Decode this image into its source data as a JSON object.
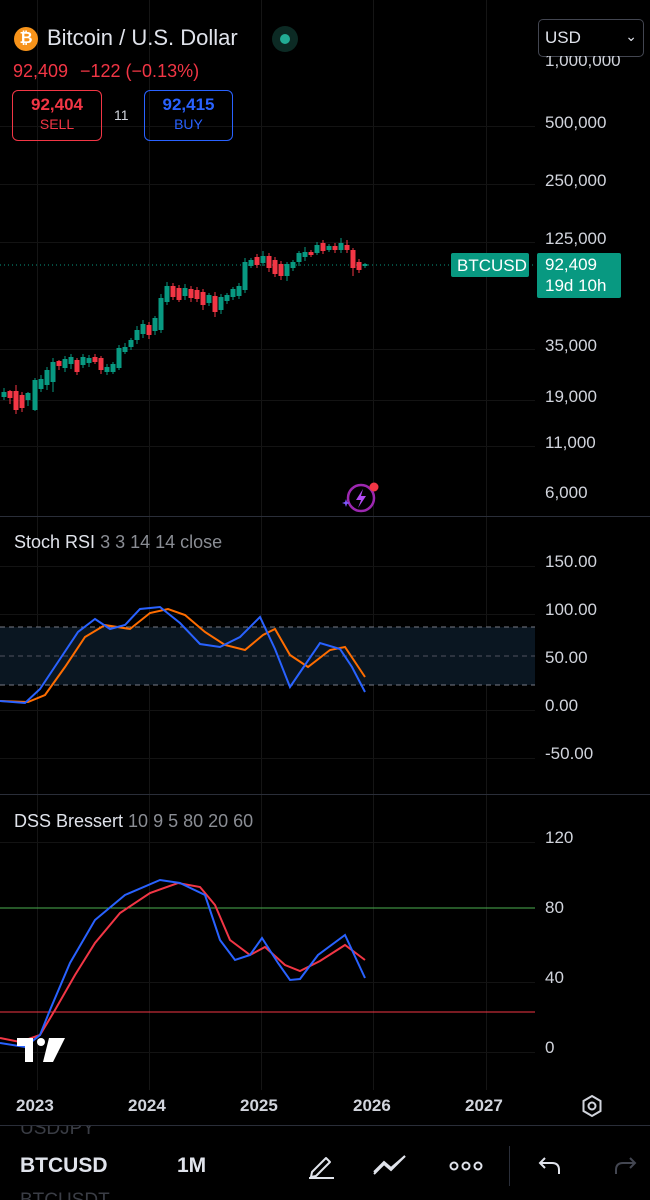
{
  "header": {
    "symbol_title": "Bitcoin / U.S. Dollar",
    "price_line": "92,409",
    "change": "−122 (−0.13%)",
    "currency": "USD"
  },
  "trade": {
    "sell_price": "92,404",
    "sell_label": "SELL",
    "spread": "11",
    "buy_price": "92,415",
    "buy_label": "BUY"
  },
  "price_axis": {
    "top_cut": "1,000,000",
    "labels": [
      "500,000",
      "250,000",
      "125,000",
      "35,000",
      "19,000",
      "11,000",
      "6,000"
    ],
    "scale": "log"
  },
  "last_price": {
    "ticker_tag": "BTCUSD",
    "price": "92,409",
    "countdown": "19d 10h"
  },
  "stoch_rsi": {
    "title": "Stoch RSI",
    "params": "3 3 14 14 close",
    "axis_labels": [
      "150.00",
      "100.00",
      "50.00",
      "0.00",
      "-50.00"
    ]
  },
  "dss": {
    "title": "DSS Bressert",
    "params": "10 9 5 80 20 60",
    "axis_labels": [
      "120",
      "80",
      "40",
      "0"
    ]
  },
  "time_axis": [
    "2023",
    "2024",
    "2025",
    "2026",
    "2027"
  ],
  "toolbar": {
    "symbol": "BTCUSD",
    "interval": "1M",
    "watch_above": "USDJPY",
    "watch_below": "BTCUSDT"
  },
  "colors": {
    "up": "#089981",
    "down": "#f23645",
    "stoch_k": "#2962ff",
    "stoch_d": "#ff6d00",
    "dss_upper": "#4caf50",
    "dss_lower": "#f23645",
    "accent": "#2962ff"
  }
}
